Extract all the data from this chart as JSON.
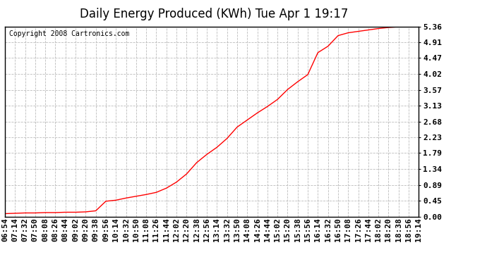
{
  "title": "Daily Energy Produced (KWh) Tue Apr 1 19:17",
  "copyright_text": "Copyright 2008 Cartronics.com",
  "background_color": "#ffffff",
  "plot_bg_color": "#ffffff",
  "line_color": "#ff0000",
  "grid_color": "#bbbbbb",
  "yticks": [
    0.0,
    0.45,
    0.89,
    1.34,
    1.79,
    2.23,
    2.68,
    3.13,
    3.57,
    4.02,
    4.47,
    4.91,
    5.36
  ],
  "ylim": [
    0.0,
    5.36
  ],
  "x_labels": [
    "06:54",
    "07:14",
    "07:32",
    "07:50",
    "08:08",
    "08:26",
    "08:44",
    "09:02",
    "09:20",
    "09:38",
    "09:56",
    "10:14",
    "10:32",
    "10:50",
    "11:08",
    "11:26",
    "11:44",
    "12:02",
    "12:20",
    "12:38",
    "12:56",
    "13:14",
    "13:32",
    "13:50",
    "14:08",
    "14:26",
    "14:44",
    "15:02",
    "15:20",
    "15:38",
    "15:56",
    "16:14",
    "16:32",
    "16:50",
    "17:08",
    "17:26",
    "17:44",
    "18:02",
    "18:20",
    "18:38",
    "18:56",
    "19:14"
  ],
  "y_values": [
    0.08,
    0.09,
    0.1,
    0.1,
    0.11,
    0.11,
    0.12,
    0.12,
    0.13,
    0.16,
    0.43,
    0.46,
    0.52,
    0.57,
    0.62,
    0.68,
    0.8,
    0.97,
    1.2,
    1.52,
    1.75,
    1.95,
    2.2,
    2.52,
    2.72,
    2.92,
    3.1,
    3.3,
    3.58,
    3.8,
    4.0,
    4.62,
    4.8,
    5.1,
    5.18,
    5.22,
    5.26,
    5.3,
    5.33,
    5.35,
    5.36,
    5.36
  ],
  "title_fontsize": 12,
  "tick_fontsize": 8,
  "copyright_fontsize": 7
}
